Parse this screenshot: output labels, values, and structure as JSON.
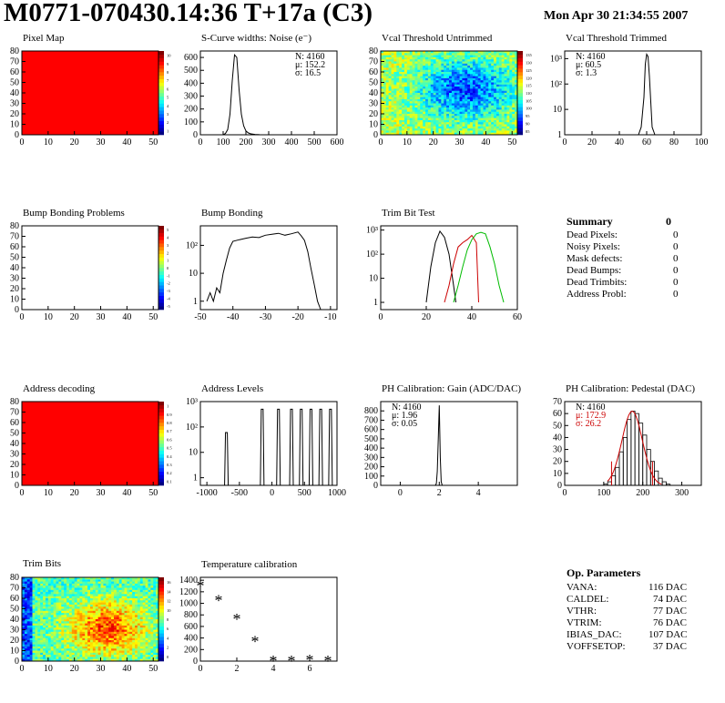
{
  "header": {
    "title": "M0771-070430.14:36 T+17a (C3)",
    "date": "Mon Apr 30 21:34:55 2007"
  },
  "chart_data": [
    {
      "id": "pixel-map",
      "type": "heatmap",
      "title": "Pixel Map",
      "xlim": [
        0,
        52
      ],
      "ylim": [
        0,
        80
      ],
      "xticks": [
        "0",
        "10",
        "20",
        "30",
        "40",
        "50"
      ],
      "yticks": [
        "0",
        "10",
        "20",
        "30",
        "40",
        "50",
        "60",
        "70",
        "80"
      ],
      "fill": "uniform",
      "fill_color": "#ff0000",
      "zscale": [
        "1",
        "2",
        "3",
        "4",
        "5",
        "6",
        "7",
        "8",
        "9",
        "10"
      ]
    },
    {
      "id": "scurve",
      "type": "line",
      "title": "S-Curve widths: Noise (e⁻)",
      "xlim": [
        0,
        600
      ],
      "ylim": [
        0,
        650
      ],
      "xticks": [
        "0",
        "100",
        "200",
        "300",
        "400",
        "500",
        "600"
      ],
      "yticks": [
        "0",
        "100",
        "200",
        "300",
        "400",
        "500",
        "600"
      ],
      "stats": [
        "N: 4160",
        "μ: 152.2",
        "σ: 16.5"
      ],
      "x": [
        100,
        110,
        120,
        130,
        140,
        150,
        160,
        170,
        180,
        190,
        200,
        210,
        220,
        230,
        240,
        250,
        260,
        270,
        280
      ],
      "values": [
        0,
        10,
        40,
        160,
        420,
        620,
        600,
        350,
        160,
        70,
        30,
        15,
        8,
        5,
        3,
        2,
        1,
        0,
        0
      ]
    },
    {
      "id": "vcal-untrimmed",
      "type": "heatmap",
      "title": "Vcal Threshold Untrimmed",
      "xlim": [
        0,
        52
      ],
      "ylim": [
        0,
        80
      ],
      "xticks": [
        "0",
        "10",
        "20",
        "30",
        "40",
        "50"
      ],
      "yticks": [
        "0",
        "10",
        "20",
        "30",
        "40",
        "50",
        "60",
        "70",
        "80"
      ],
      "zscale": [
        "85",
        "90",
        "95",
        "100",
        "105",
        "110",
        "115",
        "120",
        "125",
        "130",
        "135"
      ]
    },
    {
      "id": "vcal-trimmed",
      "type": "line",
      "title": "Vcal Threshold Trimmed",
      "log_y": true,
      "xlim": [
        0,
        100
      ],
      "ylim": [
        1,
        2000
      ],
      "xticks": [
        "0",
        "20",
        "40",
        "60",
        "80",
        "100"
      ],
      "yticks": [
        "1",
        "10",
        "10²",
        "10³"
      ],
      "stats": [
        "N: 4160",
        "μ: 60.5",
        "σ: 1.3"
      ],
      "x": [
        54,
        56,
        58,
        59,
        60,
        61,
        62,
        63,
        64,
        66
      ],
      "values": [
        1,
        2,
        30,
        600,
        1500,
        1200,
        200,
        20,
        2,
        1
      ]
    },
    {
      "id": "bump-problems",
      "type": "heatmap",
      "title": "Bump Bonding Problems",
      "xlim": [
        0,
        52
      ],
      "ylim": [
        0,
        80
      ],
      "xticks": [
        "0",
        "10",
        "20",
        "30",
        "40",
        "50"
      ],
      "yticks": [
        "0",
        "10",
        "20",
        "30",
        "40",
        "50",
        "60",
        "70",
        "80"
      ],
      "fill": "empty",
      "zscale": [
        "-5",
        "-4",
        "-3",
        "-2",
        "-1",
        "0",
        "1",
        "2",
        "3",
        "4",
        "5"
      ]
    },
    {
      "id": "bump-bonding",
      "type": "line",
      "title": "Bump Bonding",
      "log_y": true,
      "xlim": [
        -50,
        -8
      ],
      "ylim": [
        0.5,
        500
      ],
      "xticks": [
        "-50",
        "-40",
        "-30",
        "-20",
        "-10"
      ],
      "yticks": [
        "1",
        "10",
        "10²"
      ],
      "x": [
        -48,
        -47,
        -46,
        -45,
        -44,
        -43,
        -42,
        -41,
        -40,
        -38,
        -36,
        -34,
        -32,
        -30,
        -28,
        -26,
        -24,
        -22,
        -20,
        -19,
        -18,
        -17,
        -16,
        -15,
        -14,
        -13
      ],
      "values": [
        1,
        2,
        1,
        3,
        2,
        10,
        30,
        80,
        140,
        160,
        180,
        200,
        190,
        230,
        250,
        270,
        230,
        260,
        300,
        220,
        150,
        60,
        15,
        4,
        1,
        0.5
      ]
    },
    {
      "id": "trim-bit-test",
      "type": "line",
      "title": "Trim Bit Test",
      "log_y": true,
      "xlim": [
        0,
        60
      ],
      "ylim": [
        0.5,
        1500
      ],
      "xticks": [
        "0",
        "20",
        "40",
        "60"
      ],
      "yticks": [
        "1",
        "10",
        "10²",
        "10³"
      ],
      "series": [
        {
          "color": "#000000",
          "x": [
            20,
            22,
            24,
            26,
            28,
            30,
            32,
            33
          ],
          "values": [
            1,
            30,
            300,
            900,
            500,
            100,
            5,
            1
          ]
        },
        {
          "color": "#cc0000",
          "x": [
            28,
            30,
            32,
            34,
            36,
            38,
            40,
            42,
            43
          ],
          "values": [
            1,
            5,
            40,
            200,
            300,
            400,
            600,
            300,
            1
          ]
        },
        {
          "color": "#00bb00",
          "x": [
            32,
            34,
            36,
            38,
            40,
            42,
            44,
            46,
            48,
            50,
            52,
            54
          ],
          "values": [
            1,
            5,
            30,
            150,
            400,
            700,
            800,
            700,
            200,
            40,
            5,
            1
          ]
        }
      ]
    },
    {
      "id": "address-decoding",
      "type": "heatmap",
      "title": "Address decoding",
      "xlim": [
        0,
        52
      ],
      "ylim": [
        0,
        80
      ],
      "xticks": [
        "0",
        "10",
        "20",
        "30",
        "40",
        "50"
      ],
      "yticks": [
        "0",
        "10",
        "20",
        "30",
        "40",
        "50",
        "60",
        "70",
        "80"
      ],
      "fill": "uniform",
      "fill_color": "#ff0000",
      "zscale": [
        "0.1",
        "0.2",
        "0.3",
        "0.4",
        "0.5",
        "0.6",
        "0.7",
        "0.8",
        "0.9",
        "1"
      ]
    },
    {
      "id": "address-levels",
      "type": "line",
      "title": "Address Levels",
      "log_y": true,
      "xlim": [
        -1100,
        1000
      ],
      "ylim": [
        0.5,
        1000
      ],
      "xticks": [
        "-1000",
        "-500",
        "0",
        "500",
        "1000"
      ],
      "yticks": [
        "1",
        "10",
        "10²",
        "10³"
      ],
      "peaks": [
        -700,
        -150,
        100,
        300,
        450,
        600,
        750,
        900
      ],
      "values": [
        60,
        500,
        500,
        500,
        500,
        500,
        500,
        500
      ]
    },
    {
      "id": "ph-gain",
      "type": "line",
      "title": "PH Calibration: Gain (ADC/DAC)",
      "xlim": [
        -1,
        6
      ],
      "ylim": [
        0,
        900
      ],
      "xticks": [
        "0",
        "2",
        "4"
      ],
      "yticks": [
        "0",
        "100",
        "200",
        "300",
        "400",
        "500",
        "600",
        "700",
        "800"
      ],
      "stats": [
        "N: 4160",
        "μ: 1.96",
        "σ: 0.05"
      ],
      "x": [
        1.8,
        1.85,
        1.9,
        1.95,
        2.0,
        2.05,
        2.1,
        2.15
      ],
      "values": [
        0,
        20,
        150,
        500,
        860,
        300,
        40,
        0
      ]
    },
    {
      "id": "ph-pedestal",
      "type": "line",
      "title": "PH Calibration: Pedestal (DAC)",
      "xlim": [
        0,
        350
      ],
      "ylim": [
        0,
        70
      ],
      "xticks": [
        "0",
        "100",
        "200",
        "300"
      ],
      "yticks": [
        "0",
        "10",
        "20",
        "30",
        "40",
        "50",
        "60",
        "70"
      ],
      "stats": [
        "N: 4160",
        "μ: 172.9",
        "σ: 26.2"
      ],
      "fit_color": "#cc0000",
      "x": [
        100,
        110,
        120,
        130,
        140,
        150,
        160,
        170,
        180,
        190,
        200,
        210,
        220,
        230,
        240,
        250,
        260,
        270
      ],
      "values": [
        1,
        3,
        8,
        15,
        28,
        40,
        55,
        62,
        60,
        52,
        42,
        30,
        20,
        12,
        6,
        3,
        1,
        0
      ]
    },
    {
      "id": "trim-bits",
      "type": "heatmap",
      "title": "Trim Bits",
      "xlim": [
        0,
        52
      ],
      "ylim": [
        0,
        80
      ],
      "xticks": [
        "0",
        "10",
        "20",
        "30",
        "40",
        "50"
      ],
      "yticks": [
        "0",
        "10",
        "20",
        "30",
        "40",
        "50",
        "60",
        "70",
        "80"
      ],
      "zscale": [
        "0",
        "2",
        "4",
        "6",
        "8",
        "10",
        "12",
        "14",
        "16"
      ]
    },
    {
      "id": "temperature-calibration",
      "type": "scatter",
      "title": "Temperature calibration",
      "xlim": [
        0,
        7.5
      ],
      "ylim": [
        0,
        1450
      ],
      "xticks": [
        "0",
        "2",
        "4",
        "6"
      ],
      "yticks": [
        "0",
        "200",
        "400",
        "600",
        "800",
        "1000",
        "1200",
        "1400"
      ],
      "x": [
        0,
        1,
        2,
        3,
        4,
        5,
        6,
        7
      ],
      "values": [
        1330,
        1080,
        760,
        370,
        35,
        35,
        45,
        35
      ]
    }
  ],
  "summary": {
    "heading": "Summary",
    "value": "0",
    "rows": [
      {
        "label": "Dead Pixels:",
        "value": "0"
      },
      {
        "label": "Noisy Pixels:",
        "value": "0"
      },
      {
        "label": "Mask defects:",
        "value": "0"
      },
      {
        "label": "Dead Bumps:",
        "value": "0"
      },
      {
        "label": "Dead Trimbits:",
        "value": "0"
      },
      {
        "label": "Address Probl:",
        "value": "0"
      }
    ]
  },
  "op_params": {
    "heading": "Op. Parameters",
    "rows": [
      {
        "label": "VANA:",
        "value": "116 DAC"
      },
      {
        "label": "CALDEL:",
        "value": "74 DAC"
      },
      {
        "label": "VTHR:",
        "value": "77 DAC"
      },
      {
        "label": "VTRIM:",
        "value": "76 DAC"
      },
      {
        "label": "IBIAS_DAC:",
        "value": "107 DAC"
      },
      {
        "label": "VOFFSETOP:",
        "value": "37 DAC"
      }
    ]
  }
}
